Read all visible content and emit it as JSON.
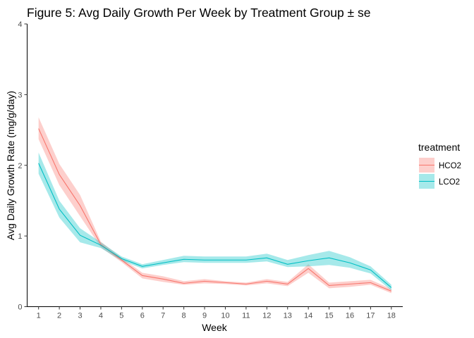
{
  "chart_data": {
    "type": "line",
    "title": "Figure 5: Avg Daily Growth Per Week by Treatment Group ± se",
    "xlabel": "Week",
    "ylabel": "Avg Daily Growth Rate (mg/g/day)",
    "x": [
      1,
      2,
      3,
      4,
      5,
      6,
      7,
      8,
      9,
      10,
      11,
      12,
      13,
      14,
      15,
      16,
      17,
      18
    ],
    "x_tick_labels": [
      "1",
      "2",
      "3",
      "4",
      "5",
      "6",
      "7",
      "8",
      "9",
      "10",
      "11",
      "12",
      "13",
      "14",
      "15",
      "16",
      "17",
      "18"
    ],
    "xlim": [
      0.45,
      18.55
    ],
    "ylim": [
      0,
      4
    ],
    "y_ticks": [
      0,
      1,
      2,
      3,
      4
    ],
    "y_tick_labels": [
      "0",
      "1",
      "2",
      "3",
      "4"
    ],
    "grid": false,
    "legend": {
      "title": "treatment",
      "position": "right"
    },
    "series": [
      {
        "name": "HCO2",
        "color": "#F8766D",
        "ribbon_color": "#F8766D",
        "values": [
          2.52,
          1.87,
          1.43,
          0.88,
          0.66,
          0.44,
          0.39,
          0.33,
          0.36,
          0.34,
          0.32,
          0.36,
          0.32,
          0.54,
          0.3,
          0.32,
          0.34,
          0.22
        ],
        "lower": [
          2.37,
          1.72,
          1.28,
          0.84,
          0.63,
          0.4,
          0.35,
          0.31,
          0.33,
          0.32,
          0.3,
          0.33,
          0.29,
          0.48,
          0.26,
          0.28,
          0.31,
          0.19
        ],
        "upper": [
          2.68,
          2.02,
          1.58,
          0.92,
          0.69,
          0.48,
          0.43,
          0.36,
          0.39,
          0.36,
          0.34,
          0.39,
          0.35,
          0.6,
          0.34,
          0.36,
          0.38,
          0.25
        ]
      },
      {
        "name": "LCO2",
        "color": "#00BFC4",
        "ribbon_color": "#00BFC4",
        "values": [
          2.03,
          1.38,
          1.01,
          0.87,
          0.68,
          0.57,
          0.62,
          0.67,
          0.66,
          0.66,
          0.66,
          0.69,
          0.6,
          0.65,
          0.69,
          0.62,
          0.52,
          0.27
        ],
        "lower": [
          1.88,
          1.26,
          0.91,
          0.83,
          0.65,
          0.54,
          0.59,
          0.63,
          0.62,
          0.62,
          0.62,
          0.64,
          0.56,
          0.57,
          0.59,
          0.55,
          0.47,
          0.23
        ],
        "upper": [
          2.18,
          1.5,
          1.11,
          0.91,
          0.71,
          0.6,
          0.66,
          0.72,
          0.71,
          0.71,
          0.71,
          0.75,
          0.66,
          0.73,
          0.79,
          0.7,
          0.57,
          0.31
        ]
      }
    ]
  }
}
